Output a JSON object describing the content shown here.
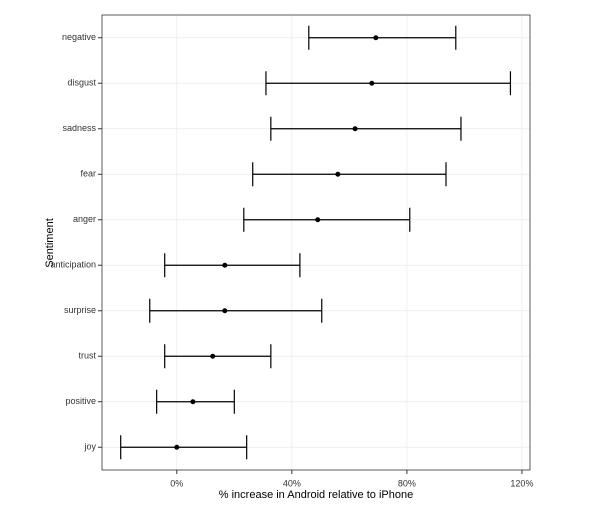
{
  "chart_data": {
    "type": "errorbar",
    "x_label": "% increase in Android relative to iPhone",
    "y_label": "Sentiment",
    "categories": [
      "negative",
      "disgust",
      "sadness",
      "fear",
      "anger",
      "anticipation",
      "surprise",
      "trust",
      "positive",
      "joy"
    ],
    "values": [
      69.2,
      67.8,
      62,
      56,
      49,
      16.7,
      16.7,
      12.5,
      5.6,
      0
    ],
    "lower": [
      45.9,
      31,
      32.7,
      26.4,
      23.3,
      -4.2,
      -9.4,
      -4.2,
      -7,
      -19.5
    ],
    "upper": [
      97,
      116,
      98.8,
      93.6,
      81,
      42.8,
      50.4,
      32.7,
      20,
      24.3
    ],
    "color": "#000000",
    "xlim": [
      -26,
      122.8
    ],
    "xticks": [
      {
        "value": 0,
        "label": "0%"
      },
      {
        "value": 40,
        "label": "40%"
      },
      {
        "value": 80,
        "label": "80%"
      },
      {
        "value": 120,
        "label": "120%"
      }
    ],
    "grid": true
  }
}
